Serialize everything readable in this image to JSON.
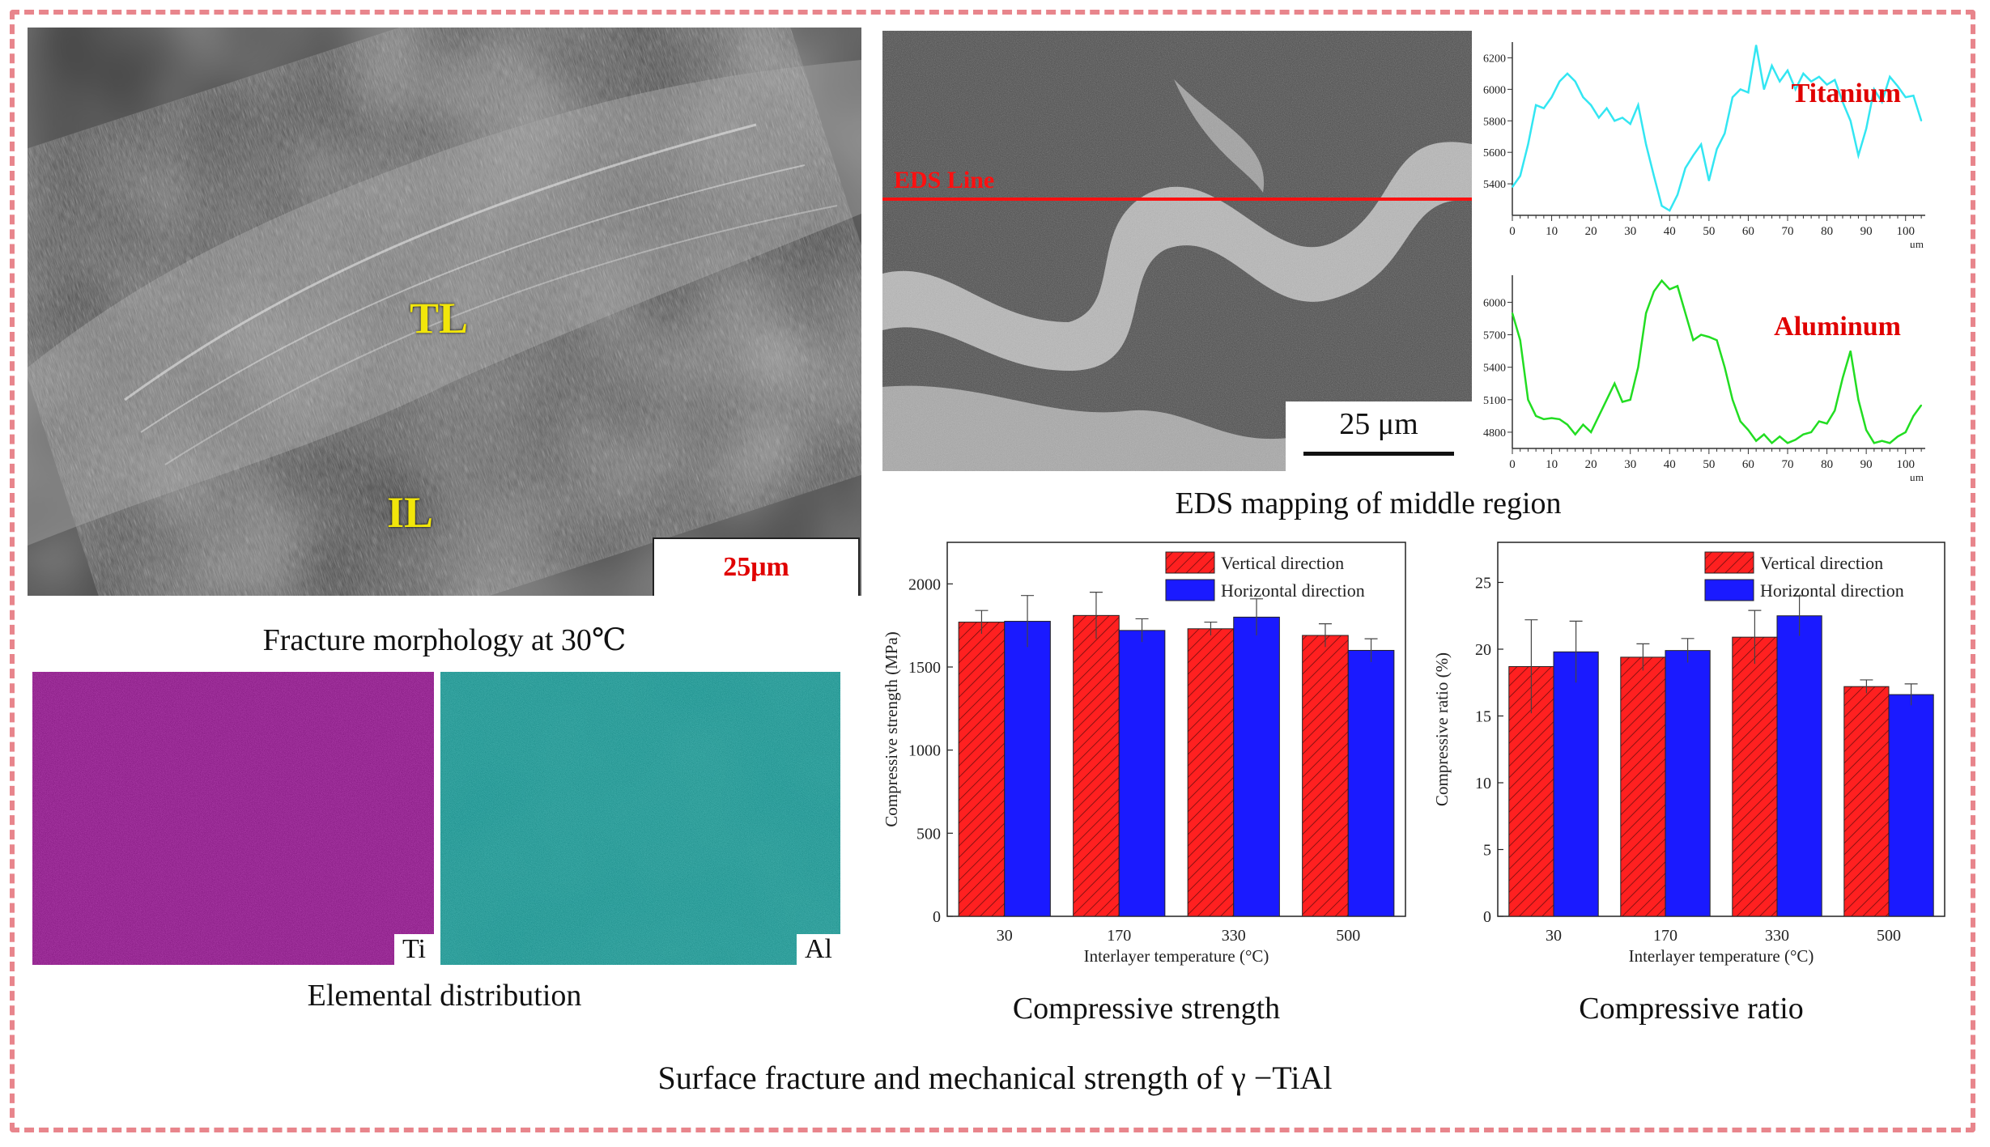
{
  "fracture": {
    "labels": {
      "tl": "TL",
      "il": "IL"
    },
    "scale_bar": "25μm",
    "caption": "Fracture morphology at 30℃"
  },
  "elemental": {
    "ti_label": "Ti",
    "al_label": "Al",
    "caption": "Elemental distribution",
    "colors": {
      "ti": "#7a0f76",
      "al": "#1a8a86"
    }
  },
  "eds": {
    "line_label": "EDS Line",
    "scale_bar": "25 μm",
    "caption": "EDS mapping of middle region"
  },
  "footer_caption": "Surface fracture and mechanical strength of γ −TiAl",
  "chart_data": [
    {
      "type": "line",
      "label": "Titanium",
      "color": "#33e6f2",
      "x_unit": "μm",
      "x_ticks": [
        0,
        10,
        20,
        30,
        40,
        50,
        60,
        70,
        80,
        90,
        100
      ],
      "y_ticks": [
        5400,
        5600,
        5800,
        6000,
        6200
      ],
      "xlim": [
        0,
        105
      ],
      "ylim": [
        5200,
        6300
      ],
      "x": [
        0,
        2,
        4,
        6,
        8,
        10,
        12,
        14,
        16,
        18,
        20,
        22,
        24,
        26,
        28,
        30,
        32,
        34,
        36,
        38,
        40,
        42,
        44,
        46,
        48,
        50,
        52,
        54,
        56,
        58,
        60,
        62,
        64,
        66,
        68,
        70,
        72,
        74,
        76,
        78,
        80,
        82,
        84,
        86,
        88,
        90,
        92,
        94,
        96,
        98,
        100,
        102,
        104
      ],
      "y": [
        5380,
        5450,
        5650,
        5900,
        5880,
        5950,
        6050,
        6100,
        6050,
        5950,
        5900,
        5820,
        5880,
        5800,
        5820,
        5780,
        5900,
        5650,
        5450,
        5260,
        5230,
        5330,
        5500,
        5580,
        5650,
        5420,
        5620,
        5720,
        5950,
        6000,
        5980,
        6280,
        6000,
        6150,
        6050,
        6120,
        6000,
        6100,
        6050,
        6080,
        6030,
        6060,
        5920,
        5800,
        5580,
        5750,
        6000,
        5920,
        6080,
        6020,
        5950,
        5960,
        5800
      ]
    },
    {
      "type": "line",
      "label": "Aluminum",
      "color": "#22dd22",
      "x_unit": "μm",
      "x_ticks": [
        0,
        10,
        20,
        30,
        40,
        50,
        60,
        70,
        80,
        90,
        100
      ],
      "y_ticks": [
        4800,
        5100,
        5400,
        5700,
        6000
      ],
      "xlim": [
        0,
        105
      ],
      "ylim": [
        4650,
        6250
      ],
      "x": [
        0,
        2,
        4,
        6,
        8,
        10,
        12,
        14,
        16,
        18,
        20,
        22,
        24,
        26,
        28,
        30,
        32,
        34,
        36,
        38,
        40,
        42,
        44,
        46,
        48,
        50,
        52,
        54,
        56,
        58,
        60,
        62,
        64,
        66,
        68,
        70,
        72,
        74,
        76,
        78,
        80,
        82,
        84,
        86,
        88,
        90,
        92,
        94,
        96,
        98,
        100,
        102,
        104
      ],
      "y": [
        5900,
        5650,
        5100,
        4950,
        4920,
        4930,
        4920,
        4870,
        4780,
        4870,
        4800,
        4950,
        5100,
        5250,
        5080,
        5100,
        5400,
        5900,
        6100,
        6200,
        6120,
        6150,
        5900,
        5650,
        5700,
        5680,
        5650,
        5400,
        5100,
        4900,
        4820,
        4720,
        4780,
        4700,
        4760,
        4700,
        4730,
        4780,
        4800,
        4900,
        4880,
        5000,
        5300,
        5550,
        5100,
        4820,
        4700,
        4720,
        4700,
        4760,
        4800,
        4950,
        5050
      ]
    },
    {
      "type": "bar",
      "title": "Compressive strength",
      "xlabel": "Interlayer temperature (°C)",
      "ylabel": "Compressive strength (MPa)",
      "categories": [
        "30",
        "170",
        "330",
        "500"
      ],
      "ylim": [
        0,
        2250
      ],
      "y_ticks": [
        0,
        500,
        1000,
        1500,
        2000
      ],
      "legend": "top-right",
      "series": [
        {
          "name": "Vertical direction",
          "color": "#ff2020",
          "hatched": true,
          "values": [
            1770,
            1810,
            1730,
            1690
          ],
          "errors": [
            70,
            140,
            40,
            70
          ]
        },
        {
          "name": "Horizontal direction",
          "color": "#1a1aff",
          "hatched": false,
          "values": [
            1775,
            1720,
            1800,
            1600
          ],
          "errors": [
            155,
            70,
            110,
            70
          ]
        }
      ]
    },
    {
      "type": "bar",
      "title": "Compressive ratio",
      "xlabel": "Interlayer temperature (°C)",
      "ylabel": "Compressive ratio (%)",
      "categories": [
        "30",
        "170",
        "330",
        "500"
      ],
      "ylim": [
        0,
        28
      ],
      "y_ticks": [
        0,
        5,
        10,
        15,
        20,
        25
      ],
      "legend": "top-right",
      "series": [
        {
          "name": "Vertical direction",
          "color": "#ff2020",
          "hatched": true,
          "values": [
            18.7,
            19.4,
            20.9,
            17.2
          ],
          "errors": [
            3.5,
            1.0,
            2.0,
            0.5
          ]
        },
        {
          "name": "Horizontal direction",
          "color": "#1a1aff",
          "hatched": false,
          "values": [
            19.8,
            19.9,
            22.5,
            16.6
          ],
          "errors": [
            2.3,
            0.9,
            1.5,
            0.8
          ]
        }
      ]
    }
  ]
}
